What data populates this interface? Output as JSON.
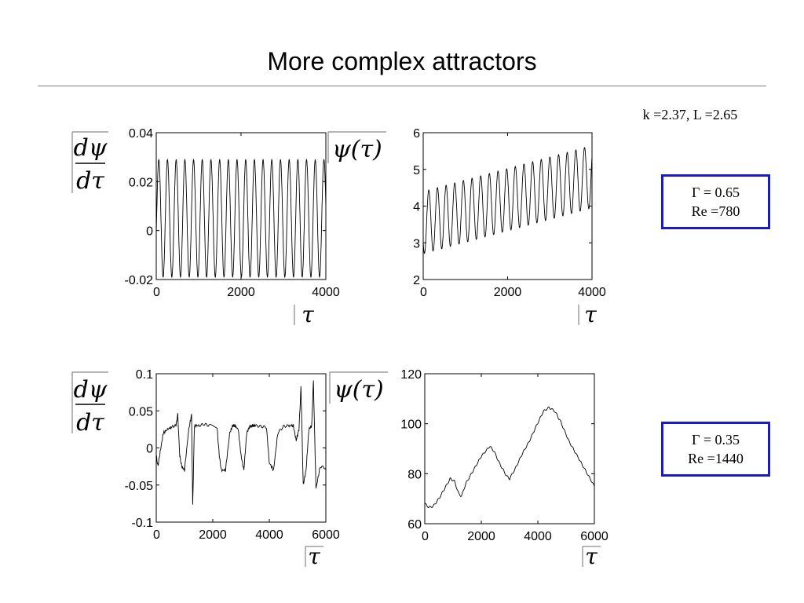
{
  "title": "More complex attractors",
  "params_label": "k =2.37, L =2.65",
  "cases": [
    {
      "gamma": "Γ = 0.65",
      "re": "Re =780"
    },
    {
      "gamma": "Γ = 0.35",
      "re": "Re =1440"
    }
  ],
  "colors": {
    "box_border": "#1a1ac8",
    "line": "#000000"
  },
  "labels": {
    "dpsi_num": "dψ",
    "dpsi_den": "dτ",
    "psi": "ψ(τ)",
    "tau": "τ"
  },
  "chart_data": [
    {
      "type": "line",
      "ylabel": "dψ/dτ",
      "xlabel": "τ",
      "xlim": [
        0,
        4000
      ],
      "ylim": [
        -0.02,
        0.04
      ],
      "xticks": [
        0,
        2000,
        4000
      ],
      "yticks": [
        -0.02,
        0,
        0.02,
        0.04
      ],
      "ytick_labels": [
        "-0.02",
        "0",
        "0.02",
        "0.04"
      ],
      "series": [
        {
          "model": "periodic",
          "mean": 0.005,
          "amplitude": 0.024,
          "period": 205,
          "x_end": 4000
        }
      ]
    },
    {
      "type": "line",
      "ylabel": "ψ(τ)",
      "xlabel": "τ",
      "xlim": [
        0,
        4000
      ],
      "ylim": [
        2,
        6
      ],
      "xticks": [
        0,
        2000,
        4000
      ],
      "yticks": [
        2,
        3,
        4,
        5,
        6
      ],
      "ytick_labels": [
        "2",
        "3",
        "4",
        "5",
        "6"
      ],
      "series": [
        {
          "model": "periodic_drift",
          "mean_start": 3.55,
          "mean_end": 4.8,
          "amplitude_start": 0.85,
          "amplitude_end": 0.85,
          "period": 205,
          "x_end": 4000
        }
      ]
    },
    {
      "type": "line",
      "ylabel": "dψ/dτ",
      "xlabel": "τ",
      "xlim": [
        0,
        6000
      ],
      "ylim": [
        -0.1,
        0.1
      ],
      "xticks": [
        0,
        2000,
        4000,
        6000
      ],
      "yticks": [
        -0.1,
        -0.05,
        0,
        0.05,
        0.1
      ],
      "ytick_labels": [
        "-0.1",
        "-0.05",
        "0",
        "0.05",
        "0.1"
      ],
      "series": [
        {
          "model": "bursts",
          "x": [
            0,
            60,
            140,
            250,
            400,
            520,
            700,
            760,
            830,
            900,
            1000,
            1150,
            1250,
            1290,
            1350,
            1500,
            1700,
            1900,
            2150,
            2230,
            2300,
            2450,
            2600,
            2700,
            2780,
            2900,
            3000,
            3100,
            3200,
            3290,
            3380,
            3500,
            3700,
            3900,
            4000,
            4150,
            4300,
            4500,
            4700,
            4850,
            4950,
            5050,
            5120,
            5200,
            5300,
            5400,
            5500,
            5560,
            5650,
            5800,
            6000
          ],
          "y": [
            -0.01,
            -0.025,
            -0.005,
            0.02,
            0.025,
            0.028,
            0.03,
            0.045,
            -0.01,
            -0.025,
            -0.03,
            0.025,
            0.045,
            -0.078,
            0.03,
            0.03,
            0.032,
            0.03,
            0.028,
            -0.01,
            -0.03,
            -0.03,
            0.02,
            0.03,
            0.03,
            0.025,
            -0.01,
            -0.03,
            0.02,
            0.028,
            0.03,
            0.03,
            0.029,
            0.028,
            -0.02,
            -0.03,
            0.02,
            0.029,
            0.03,
            0.03,
            0.01,
            0.025,
            0.082,
            -0.05,
            -0.03,
            0.025,
            0.03,
            0.09,
            -0.055,
            -0.025,
            -0.027
          ]
        }
      ]
    },
    {
      "type": "line",
      "ylabel": "ψ(τ)",
      "xlabel": "τ",
      "xlim": [
        0,
        6000
      ],
      "ylim": [
        60,
        120
      ],
      "xticks": [
        0,
        2000,
        4000,
        6000
      ],
      "yticks": [
        60,
        80,
        100,
        120
      ],
      "ytick_labels": [
        "60",
        "80",
        "100",
        "120"
      ],
      "series": [
        {
          "model": "points",
          "x": [
            0,
            150,
            300,
            500,
            700,
            900,
            1050,
            1200,
            1300,
            1450,
            1700,
            2000,
            2300,
            2450,
            2650,
            2900,
            3000,
            3200,
            3450,
            3700,
            3900,
            4200,
            4400,
            4600,
            4800,
            5100,
            5400,
            5700,
            6000
          ],
          "y": [
            68,
            66.5,
            67,
            70,
            74,
            78,
            77,
            72,
            71,
            76,
            81,
            87,
            91,
            89,
            84,
            79,
            78,
            82,
            88,
            93,
            98,
            105,
            106.5,
            105,
            101,
            93,
            87,
            81,
            75
          ]
        }
      ]
    }
  ]
}
